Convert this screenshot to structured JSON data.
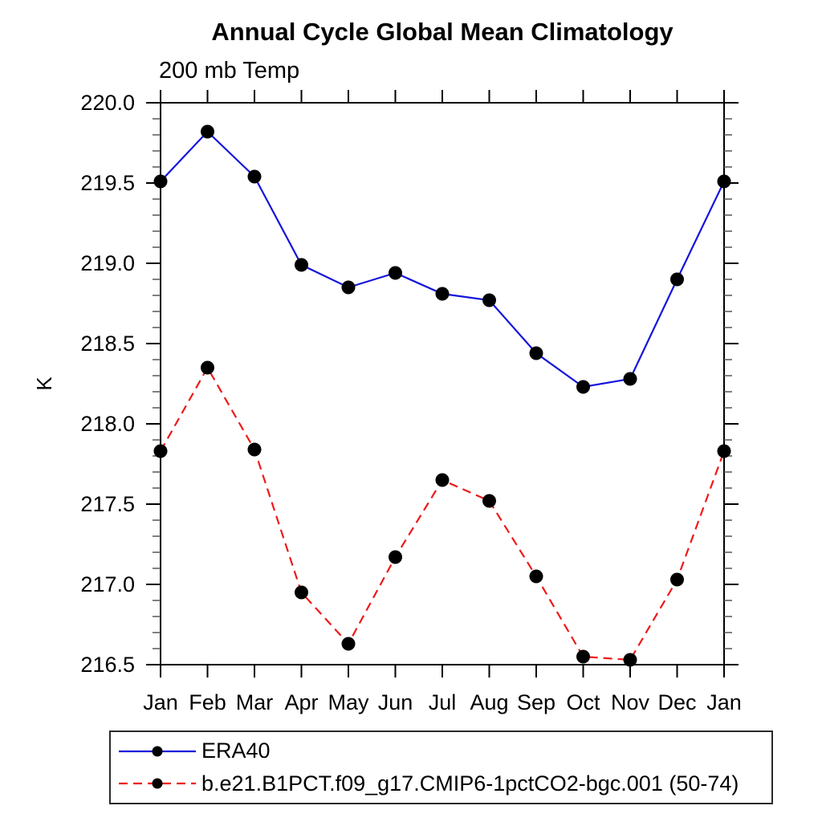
{
  "title": "Annual Cycle Global Mean Climatology",
  "subtitle": "200 mb Temp",
  "y_axis_title": "K",
  "chart_data": {
    "type": "line",
    "title": "Annual Cycle Global Mean Climatology",
    "subtitle": "200 mb Temp",
    "xlabel": "",
    "ylabel": "K",
    "categories": [
      "Jan",
      "Feb",
      "Mar",
      "Apr",
      "May",
      "Jun",
      "Jul",
      "Aug",
      "Sep",
      "Oct",
      "Nov",
      "Dec",
      "Jan"
    ],
    "ylim": [
      216.5,
      220.0
    ],
    "ytick_major": [
      216.5,
      217.0,
      217.5,
      218.0,
      218.5,
      219.0,
      219.5,
      220.0
    ],
    "ytick_labels": [
      "216.5",
      "217.0",
      "217.5",
      "218.0",
      "218.5",
      "219.0",
      "219.5",
      "220.0"
    ],
    "ytick_minor_step": 0.1,
    "grid": false,
    "legend_position": "bottom",
    "marker": "filled-circle",
    "marker_color": "#000000",
    "series": [
      {
        "name": "ERA40",
        "color": "#1414dc",
        "style": "solid",
        "values": [
          219.51,
          219.82,
          219.54,
          218.99,
          218.85,
          218.94,
          218.81,
          218.77,
          218.44,
          218.23,
          218.28,
          218.9,
          219.51
        ]
      },
      {
        "name": "b.e21.B1PCT.f09_g17.CMIP6-1pctCO2-bgc.001 (50-74)",
        "color": "#ee1919",
        "style": "dashed",
        "values": [
          217.83,
          218.35,
          217.84,
          216.95,
          216.63,
          217.17,
          217.65,
          217.52,
          217.05,
          216.55,
          216.53,
          217.03,
          217.83
        ]
      }
    ]
  },
  "colors": {
    "axis": "#000000",
    "minor_tick": "#555555",
    "text": "#000000",
    "background": "#ffffff"
  }
}
